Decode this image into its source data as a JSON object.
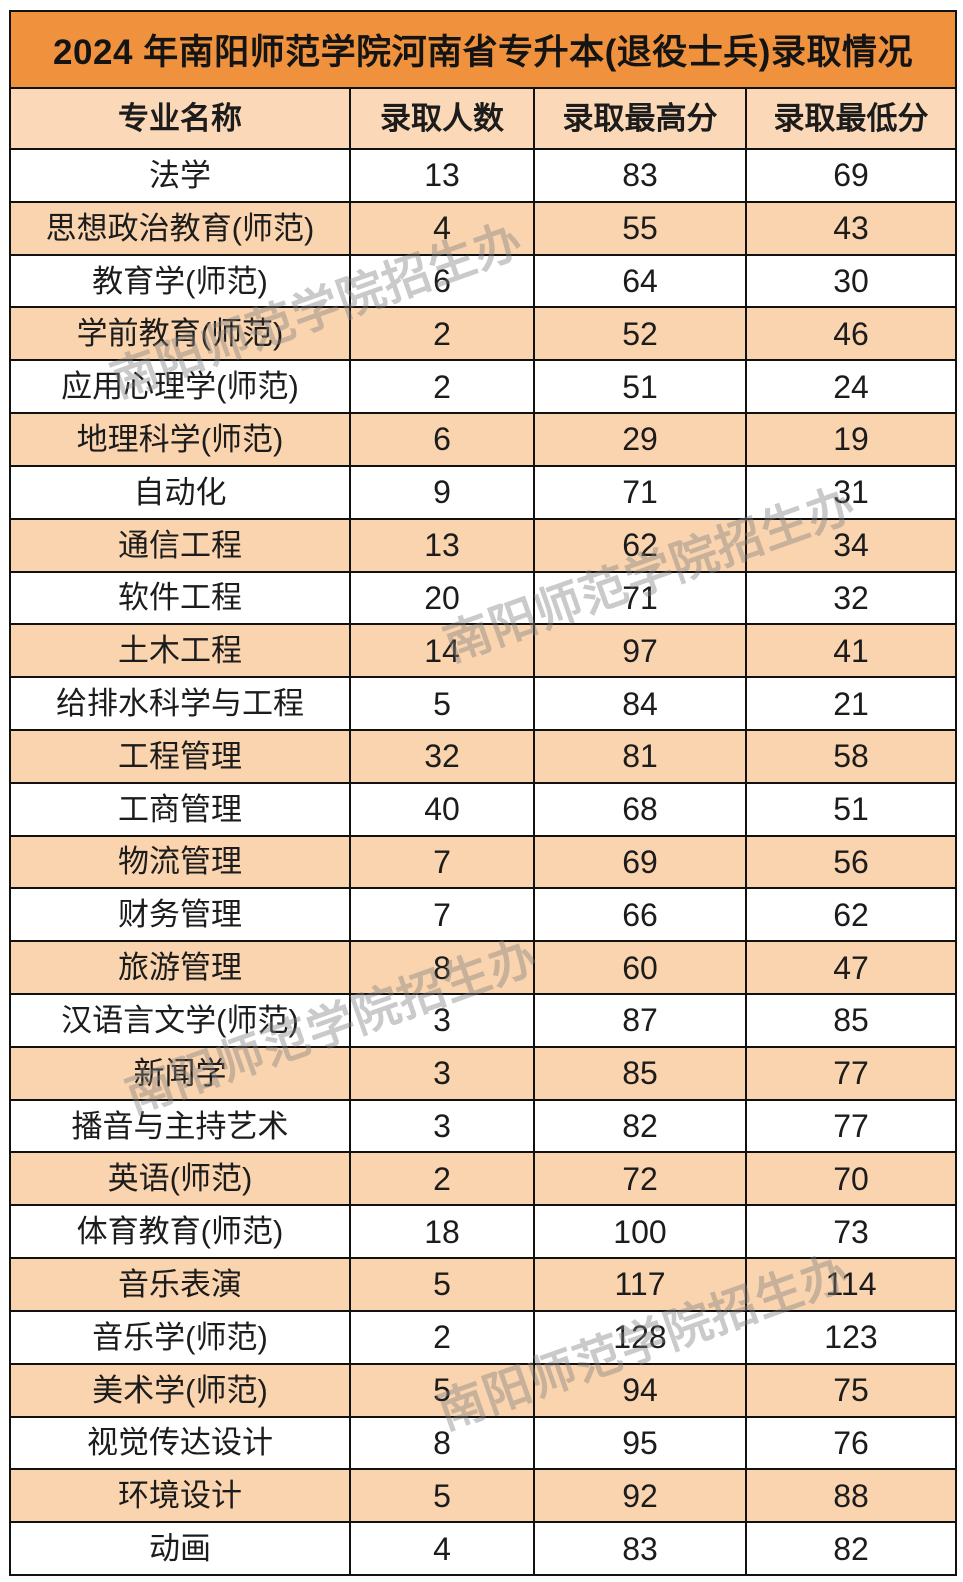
{
  "chart_data": {
    "type": "table",
    "title": "2024 年南阳师范学院河南省专升本(退役士兵)录取情况",
    "columns": [
      "专业名称",
      "录取人数",
      "录取最高分",
      "录取最低分"
    ],
    "rows": [
      [
        "法学",
        "13",
        "83",
        "69"
      ],
      [
        "思想政治教育(师范)",
        "4",
        "55",
        "43"
      ],
      [
        "教育学(师范)",
        "6",
        "64",
        "30"
      ],
      [
        "学前教育(师范)",
        "2",
        "52",
        "46"
      ],
      [
        "应用心理学(师范)",
        "2",
        "51",
        "24"
      ],
      [
        "地理科学(师范)",
        "6",
        "29",
        "19"
      ],
      [
        "自动化",
        "9",
        "71",
        "31"
      ],
      [
        "通信工程",
        "13",
        "62",
        "34"
      ],
      [
        "软件工程",
        "20",
        "71",
        "32"
      ],
      [
        "土木工程",
        "14",
        "97",
        "41"
      ],
      [
        "给排水科学与工程",
        "5",
        "84",
        "21"
      ],
      [
        "工程管理",
        "32",
        "81",
        "58"
      ],
      [
        "工商管理",
        "40",
        "68",
        "51"
      ],
      [
        "物流管理",
        "7",
        "69",
        "56"
      ],
      [
        "财务管理",
        "7",
        "66",
        "62"
      ],
      [
        "旅游管理",
        "8",
        "60",
        "47"
      ],
      [
        "汉语言文学(师范)",
        "3",
        "87",
        "85"
      ],
      [
        "新闻学",
        "3",
        "85",
        "77"
      ],
      [
        "播音与主持艺术",
        "3",
        "82",
        "77"
      ],
      [
        "英语(师范)",
        "2",
        "72",
        "70"
      ],
      [
        "体育教育(师范)",
        "18",
        "100",
        "73"
      ],
      [
        "音乐表演",
        "5",
        "117",
        "114"
      ],
      [
        "音乐学(师范)",
        "2",
        "128",
        "123"
      ],
      [
        "美术学(师范)",
        "5",
        "94",
        "75"
      ],
      [
        "视觉传达设计",
        "8",
        "95",
        "76"
      ],
      [
        "环境设计",
        "5",
        "92",
        "88"
      ],
      [
        "动画",
        "4",
        "83",
        "82"
      ]
    ]
  },
  "watermark": {
    "text": "南阳师范学院招生办"
  },
  "colors": {
    "title_bg": "#F0923D",
    "header_bg": "#FBD8B7",
    "row_alt_bg": "#FAD4AE",
    "row_bg": "#FFFFFF",
    "border": "#111111",
    "text": "#1C1C1C",
    "watermark": "rgba(128,128,128,0.42)"
  }
}
